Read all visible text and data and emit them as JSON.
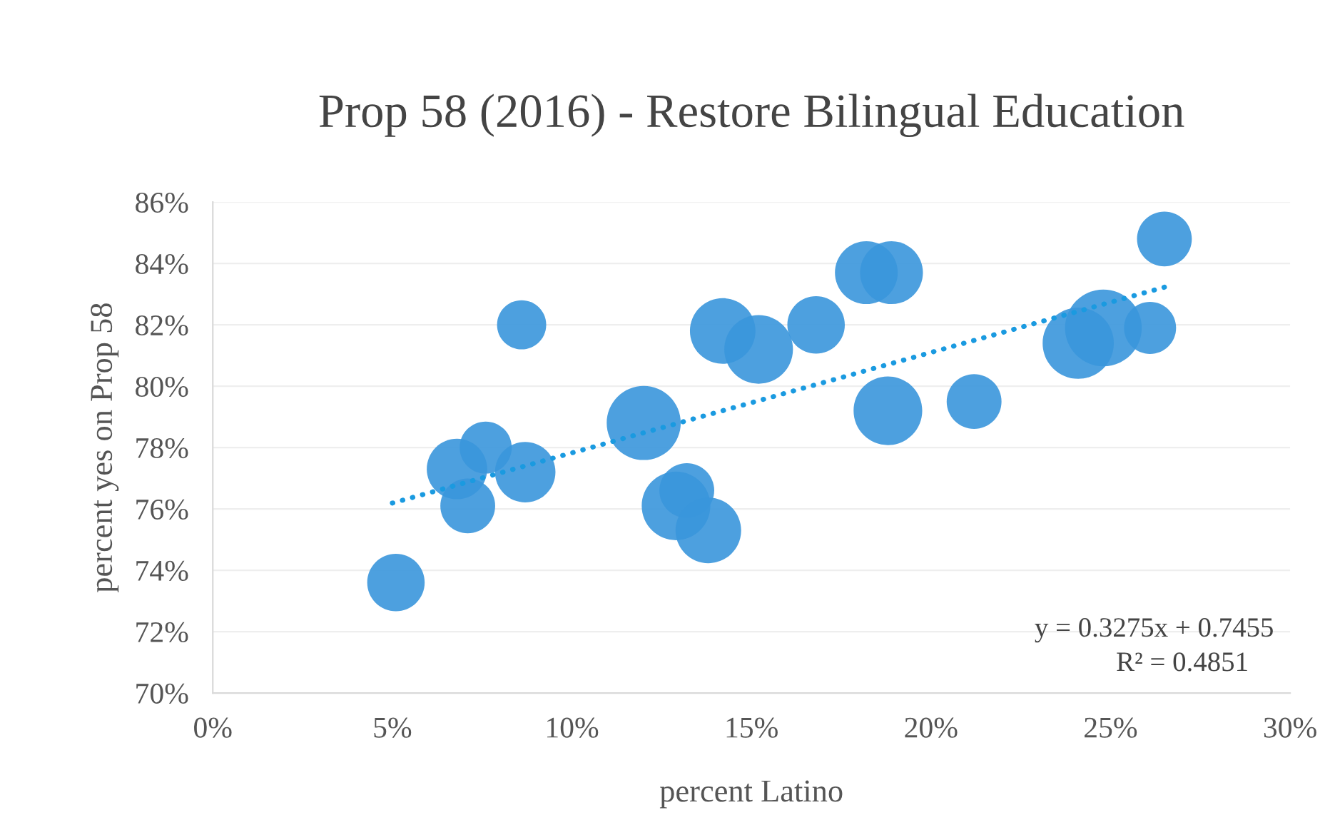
{
  "chart_data": {
    "type": "bubble",
    "title": "Prop 58 (2016) - Restore Bilingual Education",
    "xlabel": "percent Latino",
    "ylabel": "percent yes on Prop 58",
    "series": [
      {
        "color": "#3a96dc",
        "x": [
          5.1,
          8.6,
          6.8,
          7.6,
          7.1,
          8.7,
          12.0,
          12.9,
          13.2,
          13.8,
          14.2,
          15.2,
          16.8,
          18.2,
          18.9,
          18.8,
          21.2,
          24.8,
          24.1,
          26.1,
          26.5
        ],
        "values": [
          73.6,
          82.0,
          77.3,
          78.0,
          76.1,
          77.2,
          78.8,
          76.1,
          76.6,
          75.3,
          81.8,
          81.2,
          82.0,
          83.7,
          83.7,
          79.2,
          79.5,
          81.9,
          81.4,
          81.9,
          84.8
        ],
        "sizes": [
          0.56,
          0.41,
          0.62,
          0.46,
          0.51,
          0.62,
          0.93,
          0.8,
          0.51,
          0.73,
          0.73,
          0.8,
          0.56,
          0.67,
          0.67,
          0.8,
          0.51,
          1,
          0.86,
          0.46,
          0.51
        ]
      },
      {
        "type": "line",
        "color": "#1a9ae0",
        "line_style": "dotted",
        "x": [
          5.0,
          26.6
        ],
        "values": [
          76.19,
          83.26
        ]
      }
    ],
    "annotations": [
      "y = 0.3275x + 0.7455",
      "R² = 0.4851"
    ],
    "xlim": [
      0,
      30
    ],
    "ylim": [
      70,
      86
    ],
    "xticks": [
      {
        "value": 0,
        "label": "0%"
      },
      {
        "value": 5,
        "label": "5%"
      },
      {
        "value": 10,
        "label": "10%"
      },
      {
        "value": 15,
        "label": "15%"
      },
      {
        "value": 20,
        "label": "20%"
      },
      {
        "value": 25,
        "label": "25%"
      },
      {
        "value": 30,
        "label": "30%"
      }
    ],
    "yticks": [
      {
        "value": 70,
        "label": "70%"
      },
      {
        "value": 72,
        "label": "72%"
      },
      {
        "value": 74,
        "label": "74%"
      },
      {
        "value": 76,
        "label": "76%"
      },
      {
        "value": 78,
        "label": "78%"
      },
      {
        "value": 80,
        "label": "80%"
      },
      {
        "value": 82,
        "label": "82%"
      },
      {
        "value": 84,
        "label": "84%"
      },
      {
        "value": 86,
        "label": "86%"
      }
    ],
    "grid": "y",
    "legend": false
  }
}
